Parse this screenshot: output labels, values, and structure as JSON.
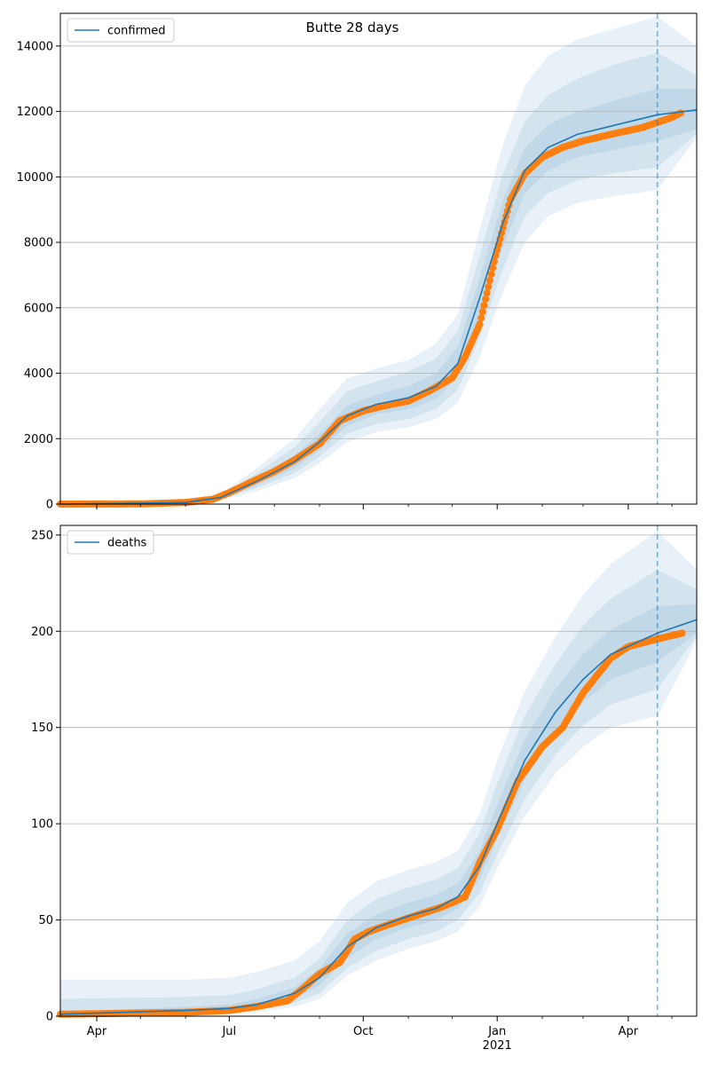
{
  "chart_data": [
    {
      "type": "line",
      "title": "Butte 28 days",
      "legend": {
        "entries": [
          "confirmed"
        ],
        "placement": "top-left"
      },
      "grid": "horizontal",
      "xlabel": "",
      "ylabel": "",
      "x_range": [
        "2020-03-07",
        "2021-05-18"
      ],
      "ylim": [
        0,
        15000
      ],
      "yticks": [
        0,
        2000,
        4000,
        6000,
        8000,
        10000,
        12000,
        14000
      ],
      "xticks": [
        "2020-04-01",
        "2020-07-01",
        "2020-10-01",
        "2021-01-01",
        "2021-04-01"
      ],
      "forecast_start": "2021-04-21",
      "model": {
        "name": "confirmed",
        "color": "#1f77b4",
        "x": [
          "2020-03-07",
          "2020-06-01",
          "2020-06-25",
          "2020-07-20",
          "2020-08-15",
          "2020-09-01",
          "2020-09-20",
          "2020-10-10",
          "2020-11-01",
          "2020-11-20",
          "2020-12-05",
          "2020-12-20",
          "2021-01-05",
          "2021-01-20",
          "2021-02-05",
          "2021-02-25",
          "2021-03-20",
          "2021-04-21",
          "2021-05-18"
        ],
        "y": [
          0,
          50,
          200,
          700,
          1300,
          1900,
          2700,
          3050,
          3250,
          3600,
          4300,
          6300,
          8600,
          10200,
          10900,
          11300,
          11550,
          11900,
          12050
        ],
        "bands": [
          {
            "level": "inner",
            "lower": [
              0,
              40,
              170,
              580,
              1100,
              1650,
              2400,
              2750,
              2900,
              3200,
              3900,
              5700,
              7900,
              9500,
              10200,
              10600,
              10800,
              11100,
              11450
            ],
            "upper": [
              0,
              60,
              230,
              820,
              1500,
              2150,
              3000,
              3350,
              3600,
              4000,
              4800,
              6900,
              9300,
              10900,
              11600,
              12000,
              12300,
              12700,
              12700
            ]
          },
          {
            "level": "middle",
            "lower": [
              0,
              30,
              150,
              500,
              950,
              1450,
              2150,
              2450,
              2600,
              2900,
              3500,
              5100,
              7200,
              8800,
              9500,
              9900,
              10100,
              10300,
              11300
            ],
            "upper": [
              0,
              75,
              260,
              950,
              1750,
              2500,
              3450,
              3750,
              4050,
              4450,
              5300,
              7600,
              10100,
              11700,
              12500,
              13000,
              13400,
              13800,
              13100
            ]
          },
          {
            "level": "outer",
            "lower": [
              0,
              20,
              120,
              400,
              800,
              1250,
              1900,
              2200,
              2350,
              2600,
              3100,
              4500,
              6500,
              8000,
              8800,
              9200,
              9400,
              9600,
              11200
            ],
            "upper": [
              0,
              90,
              300,
              1100,
              2000,
              2900,
              3850,
              4150,
              4400,
              4900,
              5800,
              8400,
              11000,
              12800,
              13700,
              14200,
              14500,
              14900,
              14000
            ]
          }
        ]
      },
      "observed": {
        "color": "#ff7f0e",
        "x": [
          "2020-03-07",
          "2020-05-01",
          "2020-06-01",
          "2020-06-20",
          "2020-07-01",
          "2020-07-15",
          "2020-08-01",
          "2020-08-15",
          "2020-09-01",
          "2020-09-15",
          "2020-10-01",
          "2020-10-15",
          "2020-11-01",
          "2020-11-15",
          "2020-12-01",
          "2020-12-10",
          "2020-12-20",
          "2020-12-31",
          "2021-01-10",
          "2021-01-20",
          "2021-02-01",
          "2021-02-15",
          "2021-03-01",
          "2021-03-20",
          "2021-04-10",
          "2021-04-30",
          "2021-05-07"
        ],
        "y": [
          0,
          5,
          50,
          150,
          350,
          650,
          1000,
          1350,
          1850,
          2550,
          2850,
          3000,
          3150,
          3450,
          3850,
          4500,
          5500,
          7600,
          9300,
          10100,
          10600,
          10900,
          11100,
          11300,
          11500,
          11800,
          11950
        ]
      }
    },
    {
      "type": "line",
      "title": "",
      "legend": {
        "entries": [
          "deaths"
        ],
        "placement": "top-left"
      },
      "grid": "horizontal",
      "xlabel": "",
      "ylabel": "",
      "x_range": [
        "2020-03-07",
        "2021-05-18"
      ],
      "ylim": [
        0,
        255
      ],
      "yticks": [
        0,
        50,
        100,
        150,
        200,
        250
      ],
      "xticks": [
        "2020-04-01",
        "2020-07-01",
        "2020-10-01",
        "2021-01-01",
        "2021-04-01"
      ],
      "xtick_labels": [
        "Apr",
        "Jul",
        "Oct",
        "Jan",
        "Apr"
      ],
      "year_label": {
        "text": "2021",
        "date": "2021-01-01"
      },
      "forecast_start": "2021-04-21",
      "model": {
        "name": "deaths",
        "color": "#1f77b4",
        "x": [
          "2020-03-07",
          "2020-06-01",
          "2020-07-01",
          "2020-07-20",
          "2020-08-15",
          "2020-09-01",
          "2020-09-20",
          "2020-10-10",
          "2020-11-01",
          "2020-11-20",
          "2020-12-05",
          "2020-12-20",
          "2021-01-01",
          "2021-01-20",
          "2021-02-10",
          "2021-03-01",
          "2021-03-20",
          "2021-04-21",
          "2021-05-18"
        ],
        "y": [
          1,
          3,
          4,
          6,
          12,
          20,
          36,
          46,
          52,
          56,
          62,
          78,
          100,
          133,
          158,
          175,
          188,
          199,
          206
        ],
        "bands": [
          {
            "level": "inner",
            "lower": [
              0,
              2,
              3,
              5,
              9,
              16,
              30,
              40,
              46,
              50,
              56,
              71,
              92,
              123,
              147,
              163,
              175,
              184,
              199
            ],
            "upper": [
              2,
              5,
              6,
              9,
              15,
              25,
              43,
              53,
              59,
              63,
              69,
              86,
              110,
              144,
              170,
              188,
              201,
              213,
              214
            ]
          },
          {
            "level": "middle",
            "lower": [
              0,
              1,
              2,
              3,
              7,
              12,
              25,
              34,
              40,
              44,
              50,
              64,
              84,
              113,
              136,
              151,
              162,
              170,
              197
            ],
            "upper": [
              9,
              10,
              11,
              14,
              20,
              30,
              50,
              61,
              67,
              71,
              77,
              95,
              121,
              156,
              183,
              203,
              217,
              232,
              222
            ]
          },
          {
            "level": "outer",
            "lower": [
              0,
              0,
              1,
              2,
              5,
              9,
              21,
              29,
              35,
              39,
              44,
              57,
              77,
              104,
              126,
              140,
              150,
              156,
              195
            ],
            "upper": [
              19,
              19,
              20,
              23,
              29,
              39,
              59,
              70,
              76,
              80,
              86,
              105,
              133,
              169,
              197,
              219,
              235,
              252,
              232
            ]
          }
        ]
      },
      "observed": {
        "color": "#ff7f0e",
        "x": [
          "2020-03-07",
          "2020-06-01",
          "2020-07-01",
          "2020-07-20",
          "2020-08-10",
          "2020-08-20",
          "2020-09-01",
          "2020-09-15",
          "2020-09-25",
          "2020-10-05",
          "2020-10-20",
          "2020-11-05",
          "2020-11-25",
          "2020-12-10",
          "2020-12-20",
          "2021-01-01",
          "2021-01-15",
          "2021-02-01",
          "2021-02-15",
          "2021-03-01",
          "2021-03-20",
          "2021-04-01",
          "2021-04-21",
          "2021-05-08"
        ],
        "y": [
          1,
          2,
          3,
          5,
          8,
          14,
          22,
          28,
          40,
          44,
          48,
          52,
          57,
          62,
          80,
          97,
          122,
          140,
          150,
          168,
          186,
          192,
          196,
          199
        ]
      }
    }
  ]
}
